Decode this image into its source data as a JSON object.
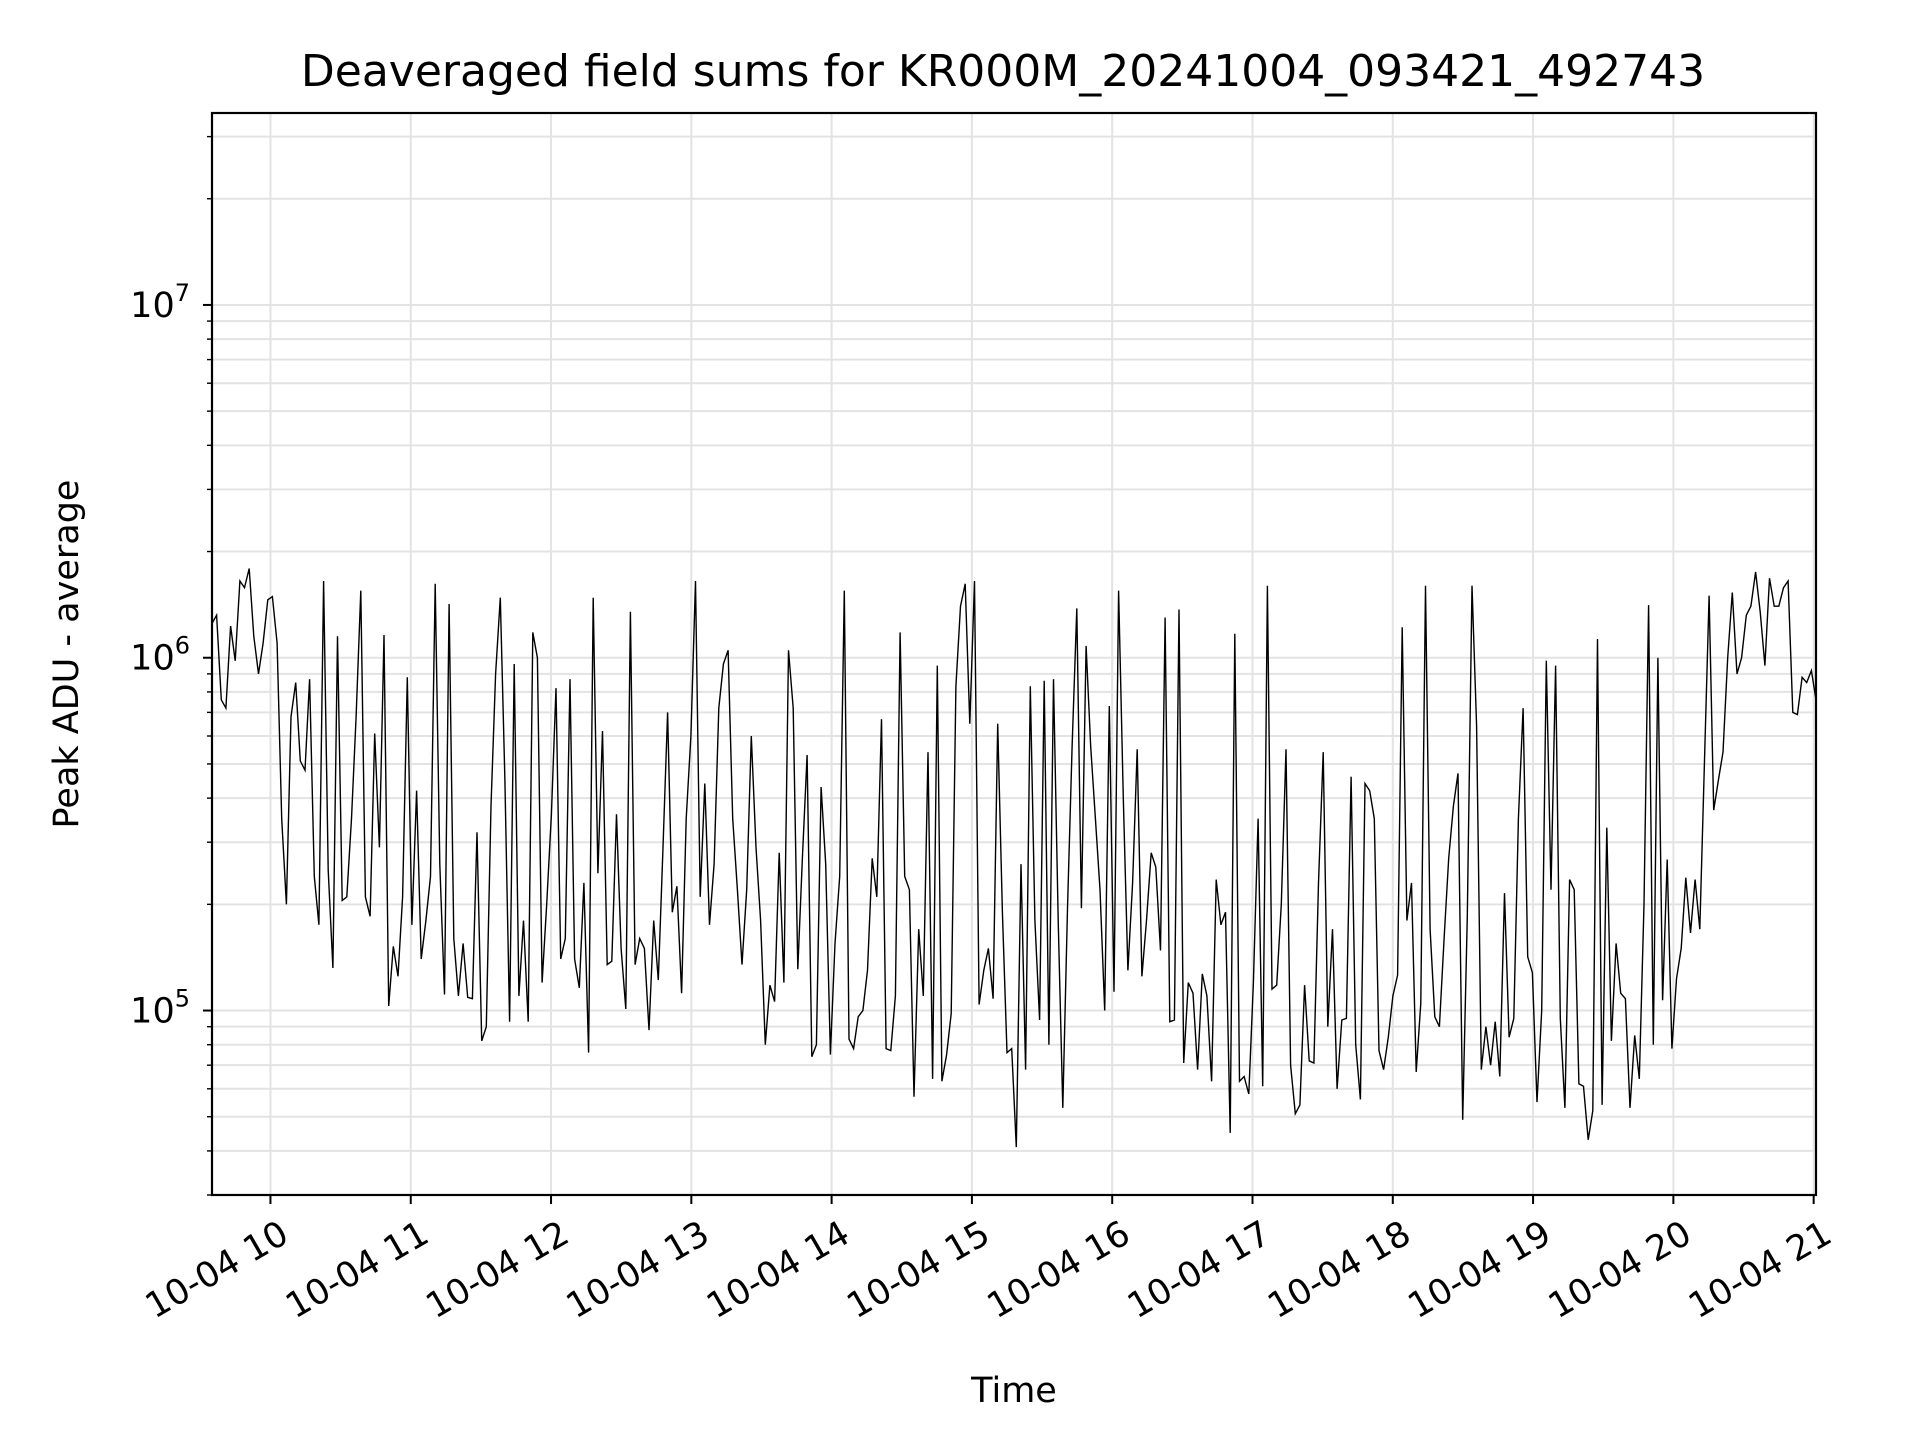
{
  "chart_data": {
    "type": "line",
    "title": "Deaveraged field sums for KR000M_20241004_093421_492743",
    "xlabel": "Time",
    "ylabel": "Peak ADU - average",
    "y_scale": "log",
    "ylim": [
      30000,
      35000000
    ],
    "xlim": [
      "2024-10-04 09:35",
      "2024-10-04 21:01"
    ],
    "grid": true,
    "line_color": "#000000",
    "x_tick_labels": [
      "10-04 10",
      "10-04 11",
      "10-04 12",
      "10-04 13",
      "10-04 14",
      "10-04 15",
      "10-04 16",
      "10-04 17",
      "10-04 18",
      "10-04 19",
      "10-04 20",
      "10-04 21"
    ],
    "x_tick_times": [
      "2024-10-04 10:00",
      "2024-10-04 11:00",
      "2024-10-04 12:00",
      "2024-10-04 13:00",
      "2024-10-04 14:00",
      "2024-10-04 15:00",
      "2024-10-04 16:00",
      "2024-10-04 17:00",
      "2024-10-04 18:00",
      "2024-10-04 19:00",
      "2024-10-04 20:00",
      "2024-10-04 21:00"
    ],
    "y_ticks": [
      {
        "value": 100000,
        "base": "10",
        "exp": "5"
      },
      {
        "value": 1000000,
        "base": "10",
        "exp": "6"
      },
      {
        "value": 10000000,
        "base": "10",
        "exp": "7"
      }
    ],
    "series": [
      {
        "x_start": "2024-10-04 09:35",
        "x_end": "2024-10-04 21:01",
        "values": [
          1250000,
          1320000,
          760000,
          720000,
          1230000,
          980000,
          1650000,
          1580000,
          1790000,
          1150000,
          900000,
          1100000,
          1460000,
          1490000,
          1100000,
          350000,
          200000,
          680000,
          850000,
          510000,
          480000,
          870000,
          240000,
          175000,
          1650000,
          250000,
          132000,
          1150000,
          205000,
          210000,
          350000,
          680000,
          1550000,
          210000,
          185000,
          610000,
          290000,
          1160000,
          103000,
          152000,
          125000,
          210000,
          880000,
          175000,
          420000,
          140000,
          180000,
          240000,
          1620000,
          260000,
          111000,
          1420000,
          160000,
          110000,
          155000,
          109000,
          108000,
          320000,
          82000,
          90000,
          380000,
          900000,
          1480000,
          450000,
          93000,
          960000,
          110000,
          180000,
          93000,
          1180000,
          1000000,
          120000,
          200000,
          360000,
          820000,
          140000,
          160000,
          870000,
          140000,
          116000,
          230000,
          76000,
          1480000,
          245000,
          620000,
          135000,
          138000,
          360000,
          150000,
          101000,
          1350000,
          135000,
          160000,
          150000,
          88000,
          180000,
          122000,
          290000,
          700000,
          190000,
          225000,
          112000,
          350000,
          600000,
          1650000,
          210000,
          440000,
          175000,
          260000,
          720000,
          960000,
          1050000,
          350000,
          220000,
          135000,
          220000,
          600000,
          290000,
          180000,
          80000,
          118000,
          106000,
          280000,
          120000,
          1050000,
          720000,
          131000,
          275000,
          530000,
          74000,
          80000,
          430000,
          260000,
          75000,
          155000,
          240000,
          1550000,
          83000,
          78000,
          96000,
          100000,
          130000,
          270000,
          210000,
          670000,
          78000,
          77000,
          110000,
          1180000,
          240000,
          220000,
          57000,
          170000,
          110000,
          540000,
          64000,
          950000,
          63000,
          75000,
          98000,
          830000,
          1400000,
          1620000,
          650000,
          1650000,
          104000,
          130000,
          150000,
          108000,
          650000,
          190000,
          76000,
          78000,
          41000,
          260000,
          68000,
          830000,
          180000,
          94000,
          860000,
          80000,
          870000,
          180000,
          53000,
          195000,
          560000,
          1380000,
          195000,
          1080000,
          560000,
          350000,
          220000,
          100000,
          730000,
          113000,
          1550000,
          400000,
          130000,
          230000,
          550000,
          125000,
          180000,
          280000,
          255000,
          148000,
          1300000,
          93000,
          94000,
          1370000,
          71000,
          120000,
          112000,
          68000,
          127000,
          110000,
          63000,
          235000,
          175000,
          190000,
          45000,
          1170000,
          63000,
          65000,
          58000,
          120000,
          350000,
          61000,
          1600000,
          115000,
          118000,
          200000,
          550000,
          70000,
          51000,
          54000,
          118000,
          72000,
          71000,
          230000,
          540000,
          90000,
          170000,
          60000,
          94000,
          95000,
          460000,
          80000,
          56000,
          440000,
          420000,
          350000,
          77000,
          68000,
          84000,
          110000,
          126000,
          1220000,
          180000,
          230000,
          67000,
          105000,
          1600000,
          170000,
          96000,
          90000,
          160000,
          270000,
          380000,
          470000,
          49000,
          185000,
          1600000,
          640000,
          68000,
          90000,
          70000,
          93000,
          65000,
          215000,
          84000,
          95000,
          350000,
          720000,
          142000,
          128000,
          55000,
          100000,
          980000,
          220000,
          950000,
          95000,
          53000,
          235000,
          220000,
          62000,
          61000,
          43000,
          52000,
          1130000,
          54000,
          330000,
          82000,
          155000,
          112000,
          108000,
          53000,
          85000,
          64000,
          200000,
          1410000,
          80000,
          1000000,
          107000,
          268000,
          78000,
          123000,
          150000,
          238000,
          166000,
          235000,
          170000,
          500000,
          1500000,
          370000,
          450000,
          540000,
          1000000,
          1530000,
          900000,
          1000000,
          1320000,
          1400000,
          1750000,
          1350000,
          950000,
          1680000,
          1400000,
          1400000,
          1580000,
          1650000,
          700000,
          690000,
          880000,
          850000,
          920000,
          760000
        ]
      }
    ]
  }
}
